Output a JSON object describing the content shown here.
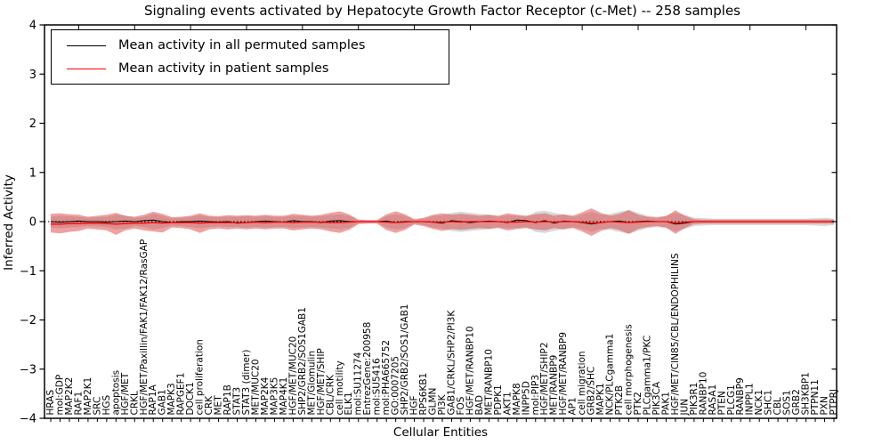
{
  "title": "Signaling events activated by Hepatocyte Growth Factor Receptor (c-Met) -- 258 samples",
  "axes": {
    "ylabel": "Inferred Activity",
    "xlabel": "Cellular Entities"
  },
  "legend": {
    "items": [
      {
        "label": "Mean activity in all permuted samples",
        "color": "#000000"
      },
      {
        "label": "Mean activity in patient samples",
        "color": "#ff0000"
      }
    ]
  },
  "chart_data": {
    "type": "line",
    "subtype": "mean lines with shaded std bands over categorical x axis",
    "title": "Signaling events activated by Hepatocyte Growth Factor Receptor (c-Met) -- 258 samples",
    "xlabel": "Cellular Entities",
    "ylabel": "Inferred Activity",
    "ylim": [
      -4,
      4
    ],
    "yticks": [
      "4",
      "3",
      "2",
      "1",
      "0",
      "−1",
      "−2",
      "−3",
      "−4"
    ],
    "grid": false,
    "legend_position": "upper left",
    "zero_reference_line": "dotted black at y=0",
    "categories": [
      "HRAS",
      "mol:GDP",
      "MAP2K2",
      "RAF1",
      "MAP2K1",
      "SRC",
      "HGS",
      "apoptosis",
      "HGF/MET",
      "CRKL",
      "HGF/MET/Paxillin/FAK1/FAK12/RasGAP",
      "RAP1A",
      "GAB1",
      "MAPK3",
      "RAPGEF1",
      "DOCK1",
      "cell proliferation",
      "CRK",
      "MET",
      "RAP1B",
      "STAT3",
      "STAT3 (dimer)",
      "MET/MUC20",
      "MAP2K4",
      "MAP3K5",
      "MAP4K1",
      "HGF/MET/MUC20",
      "SHP2/GRB2/SOS1GAB1",
      "MET/Glomulin",
      "HGF/MET/SHIP",
      "CBL/CRK",
      "cell motility",
      "ELK1",
      "mol:SU11274",
      "EntrezGene:200958",
      "mol:SU5416",
      "mol:PHA665752",
      "GO:0007205",
      "SHP2/GRB2/SOS1/GAB1",
      "HGF",
      "RPS6KB1",
      "GLMN",
      "PI3K",
      "GAB1/CRKL/SHP2/PI3K",
      "FOS",
      "HGF/MET/RANBP10",
      "BAD",
      "MET/RANBP10",
      "PDPK1",
      "AKT1",
      "MAPK8",
      "INPP5D",
      "mol:PIP3",
      "HGF/MET/SHIP2",
      "MET/RANBP9",
      "HGF/MET/RANBP9",
      "AP1",
      "cell migration",
      "GRB2/SHC",
      "MAPK1",
      "NCK/PLCgamma1",
      "PTK2B",
      "cell morphogenesis",
      "PTK2",
      "PLCgamma1/PKC",
      "PIK3CA",
      "PAK1",
      "HGF/MET/CIN85/CBL/ENDOPHILINS",
      "JUN",
      "PIK3R1",
      "RANBP10",
      "RASA1",
      "PTEN",
      "PLCG1",
      "RANBP9",
      "INPPL1",
      "NCK1",
      "SHC1",
      "CBL",
      "SOS1",
      "GRB2",
      "SH3KBP1",
      "PTPN11",
      "PXN",
      "PTPRJ"
    ],
    "series": [
      {
        "name": "Mean activity in all permuted samples",
        "color": "#000000",
        "values": [
          0,
          -0.01,
          0,
          0.01,
          0,
          0,
          -0.01,
          0,
          0.01,
          0,
          0.02,
          0.03,
          0,
          -0.02,
          0,
          0,
          0.01,
          0,
          -0.01,
          0,
          -0.03,
          -0.02,
          0,
          0.01,
          0,
          -0.01,
          0.02,
          0,
          0,
          -0.02,
          0.01,
          0.02,
          0,
          0,
          0,
          0,
          0.01,
          -0.02,
          0,
          0,
          0,
          -0.01,
          -0.03,
          0.02,
          0,
          -0.02,
          0,
          0.01,
          0,
          -0.02,
          0.03,
          0.02,
          -0.02,
          0.02,
          -0.03,
          0.01,
          0,
          -0.02,
          -0.05,
          -0.02,
          0,
          0.01,
          -0.02,
          0,
          0.01,
          0,
          0,
          -0.05,
          -0.03,
          0,
          0,
          0,
          0,
          0,
          0,
          0,
          0,
          0,
          0,
          0,
          0,
          0,
          0,
          0,
          0
        ]
      },
      {
        "name": "Mean activity in patient samples",
        "color": "#ff0000",
        "values": [
          -0.05,
          -0.05,
          -0.04,
          -0.04,
          -0.03,
          -0.03,
          -0.04,
          -0.05,
          -0.04,
          -0.03,
          -0.03,
          -0.02,
          -0.03,
          -0.02,
          -0.02,
          -0.02,
          -0.03,
          -0.02,
          -0.02,
          -0.02,
          -0.02,
          -0.02,
          -0.01,
          -0.02,
          -0.01,
          -0.01,
          -0.02,
          -0.01,
          -0.01,
          -0.01,
          -0.02,
          -0.02,
          -0.01,
          0,
          0,
          0,
          -0.01,
          -0.02,
          -0.01,
          0,
          0,
          -0.01,
          -0.01,
          0,
          -0.01,
          0,
          0,
          0,
          0,
          -0.01,
          -0.01,
          0,
          -0.01,
          0,
          -0.01,
          0,
          0,
          -0.01,
          -0.03,
          -0.02,
          0,
          -0.01,
          -0.02,
          -0.01,
          0,
          0,
          0,
          -0.03,
          -0.01,
          0,
          0,
          0,
          0,
          0,
          0,
          0,
          0,
          0,
          0,
          0,
          0,
          0,
          0,
          0,
          0
        ]
      },
      {
        "name": "Permuted samples std band",
        "color": "#999999",
        "upper": [
          0.1,
          0.12,
          0.11,
          0.1,
          0.08,
          0.09,
          0.1,
          0.14,
          0.12,
          0.08,
          0.1,
          0.16,
          0.12,
          0.07,
          0.08,
          0.1,
          0.13,
          0.1,
          0.09,
          0.1,
          0.1,
          0.11,
          0.1,
          0.11,
          0.1,
          0.1,
          0.12,
          0.11,
          0.1,
          0.11,
          0.13,
          0.15,
          0.12,
          0.03,
          0.02,
          0.02,
          0.11,
          0.15,
          0.12,
          0.04,
          0.06,
          0.11,
          0.13,
          0.18,
          0.2,
          0.18,
          0.16,
          0.14,
          0.1,
          0.13,
          0.12,
          0.1,
          0.2,
          0.22,
          0.18,
          0.14,
          0.1,
          0.14,
          0.2,
          0.14,
          0.16,
          0.2,
          0.24,
          0.18,
          0.12,
          0.1,
          0.12,
          0.18,
          0.14,
          0.08,
          0.07,
          0.06,
          0.06,
          0.06,
          0.06,
          0.06,
          0.06,
          0.06,
          0.06,
          0.06,
          0.06,
          0.06,
          0.07,
          0.08,
          0.06
        ],
        "lower": [
          -0.12,
          -0.14,
          -0.12,
          -0.11,
          -0.09,
          -0.1,
          -0.11,
          -0.16,
          -0.14,
          -0.09,
          -0.11,
          -0.16,
          -0.13,
          -0.08,
          -0.09,
          -0.11,
          -0.14,
          -0.11,
          -0.1,
          -0.11,
          -0.11,
          -0.12,
          -0.11,
          -0.12,
          -0.11,
          -0.11,
          -0.13,
          -0.12,
          -0.11,
          -0.12,
          -0.14,
          -0.16,
          -0.13,
          -0.03,
          -0.02,
          -0.02,
          -0.12,
          -0.16,
          -0.13,
          -0.04,
          -0.07,
          -0.12,
          -0.14,
          -0.19,
          -0.21,
          -0.19,
          -0.17,
          -0.15,
          -0.11,
          -0.14,
          -0.13,
          -0.11,
          -0.21,
          -0.23,
          -0.19,
          -0.15,
          -0.11,
          -0.15,
          -0.21,
          -0.15,
          -0.17,
          -0.21,
          -0.25,
          -0.19,
          -0.13,
          -0.11,
          -0.13,
          -0.19,
          -0.15,
          -0.09,
          -0.08,
          -0.07,
          -0.07,
          -0.07,
          -0.07,
          -0.07,
          -0.07,
          -0.07,
          -0.07,
          -0.07,
          -0.07,
          -0.07,
          -0.08,
          -0.09,
          -0.07
        ]
      },
      {
        "name": "Patient samples std band",
        "color": "#dd4444",
        "upper": [
          0.16,
          0.17,
          0.15,
          0.14,
          0.1,
          0.12,
          0.14,
          0.18,
          0.12,
          0.1,
          0.14,
          0.2,
          0.16,
          0.09,
          0.1,
          0.12,
          0.17,
          0.12,
          0.11,
          0.13,
          0.12,
          0.13,
          0.12,
          0.14,
          0.12,
          0.12,
          0.16,
          0.14,
          0.12,
          0.14,
          0.18,
          0.21,
          0.15,
          0.04,
          0.03,
          0.03,
          0.15,
          0.21,
          0.15,
          0.05,
          0.08,
          0.14,
          0.17,
          0.14,
          0.16,
          0.14,
          0.12,
          0.14,
          0.12,
          0.17,
          0.14,
          0.12,
          0.15,
          0.17,
          0.12,
          0.15,
          0.12,
          0.19,
          0.27,
          0.18,
          0.12,
          0.16,
          0.23,
          0.14,
          0.1,
          0.08,
          0.11,
          0.23,
          0.12,
          0.05,
          0.04,
          0.04,
          0.04,
          0.04,
          0.04,
          0.04,
          0.04,
          0.04,
          0.04,
          0.04,
          0.04,
          0.04,
          0.04,
          0.04,
          0.04
        ],
        "lower": [
          -0.22,
          -0.24,
          -0.21,
          -0.19,
          -0.14,
          -0.16,
          -0.18,
          -0.27,
          -0.18,
          -0.14,
          -0.18,
          -0.2,
          -0.22,
          -0.12,
          -0.13,
          -0.16,
          -0.23,
          -0.16,
          -0.14,
          -0.16,
          -0.14,
          -0.16,
          -0.14,
          -0.16,
          -0.14,
          -0.14,
          -0.18,
          -0.16,
          -0.14,
          -0.16,
          -0.2,
          -0.23,
          -0.17,
          -0.05,
          -0.04,
          -0.04,
          -0.17,
          -0.23,
          -0.17,
          -0.06,
          -0.09,
          -0.15,
          -0.19,
          -0.15,
          -0.17,
          -0.15,
          -0.13,
          -0.15,
          -0.13,
          -0.18,
          -0.15,
          -0.13,
          -0.16,
          -0.18,
          -0.13,
          -0.16,
          -0.13,
          -0.2,
          -0.29,
          -0.19,
          -0.13,
          -0.17,
          -0.25,
          -0.15,
          -0.11,
          -0.09,
          -0.12,
          -0.25,
          -0.13,
          -0.05,
          -0.04,
          -0.04,
          -0.04,
          -0.04,
          -0.04,
          -0.04,
          -0.04,
          -0.04,
          -0.04,
          -0.04,
          -0.04,
          -0.04,
          -0.04,
          -0.04,
          -0.04
        ]
      }
    ]
  }
}
